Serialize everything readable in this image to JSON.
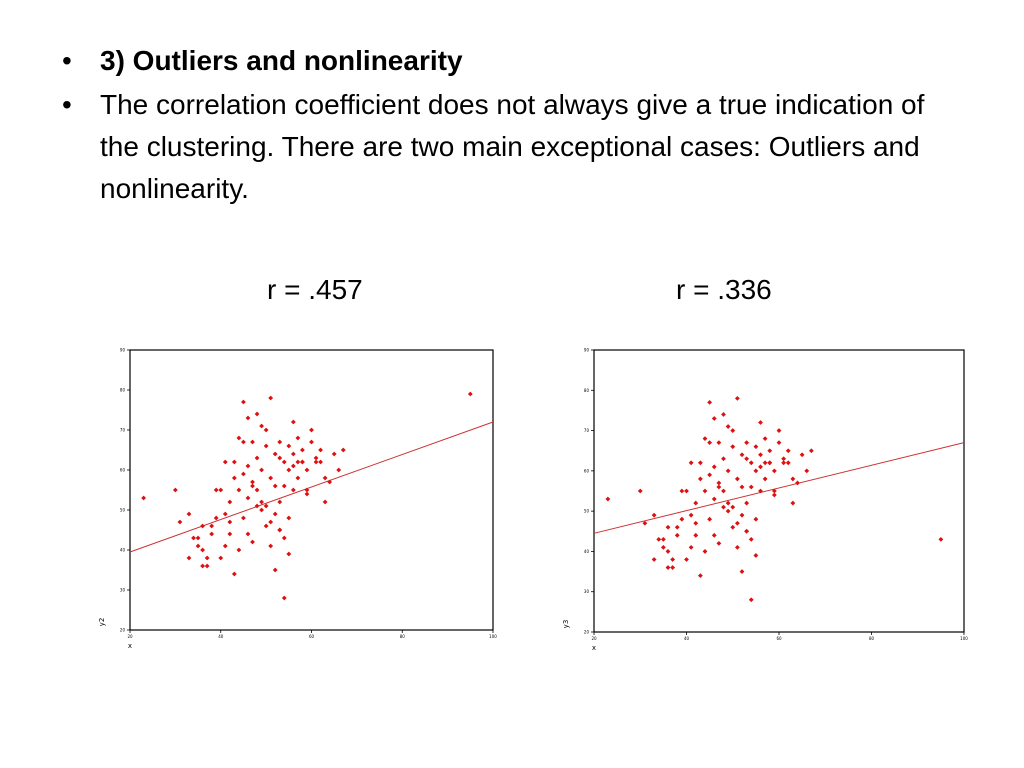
{
  "slide": {
    "bullets": [
      {
        "text": "3) Outliers and nonlinearity",
        "bold": true
      },
      {
        "text": "The correlation coefficient does not always give a true indication of the clustering.  There are two main exceptional cases: Outliers and nonlinearity.",
        "bold": false
      }
    ],
    "bullet_symbol": "•"
  },
  "colors": {
    "points": "#dd1111",
    "regression_line": "#cc3333",
    "frame": "#000000"
  },
  "chart_data": [
    {
      "type": "scatter",
      "title": "r = .457",
      "xlabel": "x",
      "ylabel": "y2",
      "xlim": [
        20,
        100
      ],
      "ylim": [
        20,
        90
      ],
      "grid": false,
      "regression": {
        "x": [
          20,
          100
        ],
        "y": [
          39.5,
          72
        ]
      },
      "points": {
        "x": [
          23,
          30,
          31,
          33,
          34,
          35,
          36,
          37,
          38,
          39,
          39,
          40,
          41,
          42,
          42,
          43,
          43,
          44,
          44,
          45,
          45,
          45,
          46,
          46,
          46,
          47,
          47,
          47,
          48,
          48,
          48,
          49,
          49,
          49,
          50,
          50,
          50,
          51,
          51,
          51,
          52,
          52,
          52,
          53,
          53,
          53,
          54,
          54,
          54,
          55,
          55,
          55,
          56,
          56,
          56,
          57,
          57,
          58,
          58,
          59,
          59,
          60,
          60,
          61,
          61,
          62,
          62,
          63,
          63,
          64,
          65,
          66,
          67,
          35,
          37,
          40,
          42,
          44,
          46,
          48,
          50,
          52,
          54,
          56,
          33,
          36,
          38,
          41,
          43,
          45,
          49,
          51,
          53,
          55,
          57,
          59,
          36,
          41,
          47,
          53,
          58,
          95
        ],
        "y": [
          53,
          55,
          47,
          49,
          43,
          43,
          46,
          38,
          44,
          48,
          55,
          55,
          62,
          44,
          52,
          34,
          62,
          55,
          68,
          48,
          59,
          77,
          53,
          61,
          73,
          42,
          57,
          67,
          74,
          55,
          63,
          71,
          50,
          60,
          70,
          51,
          66,
          78,
          41,
          58,
          64,
          56,
          49,
          63,
          67,
          45,
          56,
          62,
          28,
          60,
          66,
          48,
          61,
          64,
          72,
          58,
          68,
          62,
          65,
          55,
          60,
          67,
          70,
          63,
          62,
          62,
          65,
          58,
          52,
          57,
          64,
          60,
          65,
          41,
          36,
          38,
          47,
          40,
          44,
          51,
          46,
          35,
          43,
          55,
          38,
          40,
          46,
          41,
          58,
          67,
          52,
          47,
          45,
          39,
          62,
          54,
          36,
          49,
          56,
          52,
          62,
          79
        ]
      }
    },
    {
      "type": "scatter",
      "title": "r = .336",
      "xlabel": "x",
      "ylabel": "y3",
      "xlim": [
        20,
        100
      ],
      "ylim": [
        20,
        90
      ],
      "grid": false,
      "regression": {
        "x": [
          20,
          100
        ],
        "y": [
          44.5,
          67
        ]
      },
      "points": {
        "x": [
          23,
          30,
          31,
          33,
          34,
          35,
          36,
          37,
          38,
          39,
          39,
          40,
          41,
          42,
          42,
          43,
          43,
          44,
          44,
          45,
          45,
          45,
          46,
          46,
          46,
          47,
          47,
          47,
          48,
          48,
          48,
          49,
          49,
          49,
          50,
          50,
          50,
          51,
          51,
          51,
          52,
          52,
          52,
          53,
          53,
          53,
          54,
          54,
          54,
          55,
          55,
          55,
          56,
          56,
          56,
          57,
          57,
          58,
          58,
          59,
          59,
          60,
          60,
          61,
          61,
          62,
          62,
          63,
          63,
          64,
          65,
          66,
          67,
          35,
          37,
          40,
          42,
          44,
          46,
          48,
          50,
          52,
          54,
          56,
          33,
          36,
          38,
          41,
          43,
          45,
          49,
          51,
          53,
          55,
          57,
          59,
          36,
          41,
          47,
          53,
          58,
          95
        ],
        "y": [
          53,
          55,
          47,
          49,
          43,
          43,
          46,
          38,
          44,
          48,
          55,
          55,
          62,
          44,
          52,
          34,
          62,
          55,
          68,
          48,
          59,
          77,
          53,
          61,
          73,
          42,
          57,
          67,
          74,
          55,
          63,
          71,
          50,
          60,
          70,
          51,
          66,
          78,
          41,
          58,
          64,
          56,
          49,
          63,
          67,
          45,
          56,
          62,
          28,
          60,
          66,
          48,
          61,
          64,
          72,
          58,
          68,
          62,
          65,
          55,
          60,
          67,
          70,
          63,
          62,
          62,
          65,
          58,
          52,
          57,
          64,
          60,
          65,
          41,
          36,
          38,
          47,
          40,
          44,
          51,
          46,
          35,
          43,
          55,
          38,
          40,
          46,
          41,
          58,
          67,
          52,
          47,
          45,
          39,
          62,
          54,
          36,
          49,
          56,
          52,
          62,
          43
        ]
      }
    }
  ]
}
